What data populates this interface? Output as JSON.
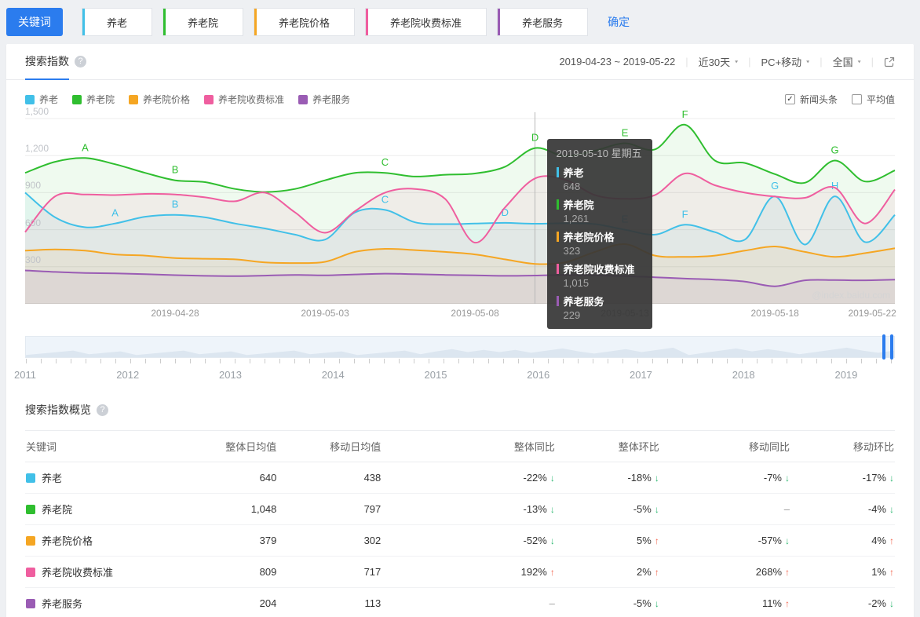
{
  "icons": {
    "caret": "▾",
    "help": "?",
    "check": "✓",
    "arrow_up": "↑",
    "arrow_down": "↓"
  },
  "topbar": {
    "keyword_button": "关键词",
    "confirm_label": "确定",
    "keywords": [
      {
        "label": "养老",
        "color": "#41c0e8"
      },
      {
        "label": "养老院",
        "color": "#2fbe2f"
      },
      {
        "label": "养老院价格",
        "color": "#f5a623"
      },
      {
        "label": "养老院收费标准",
        "color": "#ef5e9f"
      },
      {
        "label": "养老服务",
        "color": "#9a5cb4"
      }
    ]
  },
  "panel": {
    "tab_label": "搜索指数",
    "date_range": "2019-04-23 ~ 2019-05-22",
    "range_dropdown": "近30天",
    "device_dropdown": "PC+移动",
    "region_dropdown": "全国",
    "checkboxes": [
      {
        "label": "新闻头条",
        "checked": true
      },
      {
        "label": "平均值",
        "checked": false
      }
    ],
    "watermark": "@index.baidu.com"
  },
  "chart_data": {
    "type": "line",
    "title": "搜索指数",
    "x": [
      "2019-04-23",
      "2019-04-24",
      "2019-04-25",
      "2019-04-26",
      "2019-04-27",
      "2019-04-28",
      "2019-04-29",
      "2019-04-30",
      "2019-05-01",
      "2019-05-02",
      "2019-05-03",
      "2019-05-04",
      "2019-05-05",
      "2019-05-06",
      "2019-05-07",
      "2019-05-08",
      "2019-05-09",
      "2019-05-10",
      "2019-05-11",
      "2019-05-12",
      "2019-05-13",
      "2019-05-14",
      "2019-05-15",
      "2019-05-16",
      "2019-05-17",
      "2019-05-18",
      "2019-05-19",
      "2019-05-20",
      "2019-05-21",
      "2019-05-22"
    ],
    "ylim": [
      0,
      1500
    ],
    "yticks": [
      "300",
      "600",
      "900",
      "1,200",
      "1,500"
    ],
    "grid": true,
    "xtick_labels": [
      {
        "index": 5,
        "label": "2019-04-28"
      },
      {
        "index": 10,
        "label": "2019-05-03"
      },
      {
        "index": 15,
        "label": "2019-05-08"
      },
      {
        "index": 20,
        "label": "2019-05-13"
      },
      {
        "index": 25,
        "label": "2019-05-18"
      },
      {
        "index": 29,
        "label": "2019-05-22"
      }
    ],
    "series": [
      {
        "name": "养老",
        "color": "#41c0e8",
        "values": [
          900,
          700,
          620,
          650,
          705,
          720,
          700,
          650,
          610,
          560,
          520,
          740,
          760,
          660,
          645,
          650,
          655,
          648,
          652,
          645,
          600,
          560,
          640,
          580,
          520,
          870,
          480,
          870,
          500,
          720
        ],
        "markers": [
          {
            "letter": "A",
            "index": 3
          },
          {
            "letter": "B",
            "index": 5
          },
          {
            "letter": "C",
            "index": 12
          },
          {
            "letter": "D",
            "index": 16
          },
          {
            "letter": "E",
            "index": 20
          },
          {
            "letter": "F",
            "index": 22
          },
          {
            "letter": "G",
            "index": 25
          },
          {
            "letter": "H",
            "index": 27
          }
        ]
      },
      {
        "name": "养老院",
        "color": "#2fbe2f",
        "values": [
          1060,
          1150,
          1180,
          1130,
          1060,
          1000,
          985,
          930,
          905,
          930,
          1000,
          1060,
          1060,
          1030,
          1045,
          1055,
          1110,
          1261,
          1195,
          1240,
          1300,
          1250,
          1450,
          1160,
          1140,
          1050,
          980,
          1160,
          990,
          1080
        ],
        "markers": [
          {
            "letter": "A",
            "index": 2
          },
          {
            "letter": "B",
            "index": 5
          },
          {
            "letter": "C",
            "index": 12
          },
          {
            "letter": "D",
            "index": 17
          },
          {
            "letter": "E",
            "index": 20
          },
          {
            "letter": "F",
            "index": 22
          },
          {
            "letter": "G",
            "index": 27
          }
        ]
      },
      {
        "name": "养老院价格",
        "color": "#f5a623",
        "values": [
          430,
          440,
          430,
          400,
          390,
          370,
          365,
          360,
          335,
          330,
          340,
          420,
          445,
          435,
          420,
          400,
          360,
          323,
          335,
          420,
          483,
          390,
          380,
          390,
          430,
          464,
          420,
          380,
          410,
          450
        ],
        "markers": []
      },
      {
        "name": "养老院收费标准",
        "color": "#ef5e9f",
        "values": [
          580,
          870,
          885,
          880,
          890,
          885,
          862,
          830,
          900,
          740,
          575,
          750,
          900,
          930,
          850,
          495,
          780,
          1015,
          1005,
          880,
          850,
          880,
          1055,
          960,
          900,
          868,
          858,
          940,
          650,
          925
        ],
        "markers": []
      },
      {
        "name": "养老服务",
        "color": "#9a5cb4",
        "values": [
          270,
          258,
          250,
          246,
          240,
          232,
          226,
          224,
          228,
          234,
          230,
          238,
          244,
          240,
          234,
          230,
          226,
          229,
          234,
          230,
          224,
          215,
          204,
          196,
          180,
          142,
          190,
          192,
          190,
          195
        ],
        "markers": []
      }
    ],
    "tooltip": {
      "index": 17,
      "title": "2019-05-10 星期五",
      "values": [
        "648",
        "1,261",
        "323",
        "1,015",
        "229"
      ]
    }
  },
  "timeline": {
    "years": [
      "2011",
      "2012",
      "2013",
      "2014",
      "2015",
      "2016",
      "2017",
      "2018",
      "2019"
    ]
  },
  "overview": {
    "title": "搜索指数概览",
    "columns": [
      "关键词",
      "整体日均值",
      "移动日均值",
      "整体同比",
      "整体环比",
      "移动同比",
      "移动环比"
    ],
    "col_widths": [
      "18%",
      "11%",
      "12%",
      "20%",
      "12%",
      "15%",
      "12%"
    ],
    "arrow_up_color": "#f2654e",
    "arrow_down_color": "#2eb872",
    "rows": [
      {
        "keyword": "养老",
        "color": "#41c0e8",
        "overall_avg": "640",
        "mobile_avg": "438",
        "cells": [
          {
            "text": "-22%",
            "dir": "down"
          },
          {
            "text": "-18%",
            "dir": "down"
          },
          {
            "text": "-7%",
            "dir": "down"
          },
          {
            "text": "-17%",
            "dir": "down"
          }
        ]
      },
      {
        "keyword": "养老院",
        "color": "#2fbe2f",
        "overall_avg": "1,048",
        "mobile_avg": "797",
        "cells": [
          {
            "text": "-13%",
            "dir": "down"
          },
          {
            "text": "-5%",
            "dir": "down"
          },
          {
            "text": "–",
            "dir": "none"
          },
          {
            "text": "-4%",
            "dir": "down"
          }
        ]
      },
      {
        "keyword": "养老院价格",
        "color": "#f5a623",
        "overall_avg": "379",
        "mobile_avg": "302",
        "cells": [
          {
            "text": "-52%",
            "dir": "down"
          },
          {
            "text": "5%",
            "dir": "up"
          },
          {
            "text": "-57%",
            "dir": "down"
          },
          {
            "text": "4%",
            "dir": "up"
          }
        ]
      },
      {
        "keyword": "养老院收费标准",
        "color": "#ef5e9f",
        "overall_avg": "809",
        "mobile_avg": "717",
        "cells": [
          {
            "text": "192%",
            "dir": "up"
          },
          {
            "text": "2%",
            "dir": "up"
          },
          {
            "text": "268%",
            "dir": "up"
          },
          {
            "text": "1%",
            "dir": "up"
          }
        ]
      },
      {
        "keyword": "养老服务",
        "color": "#9a5cb4",
        "overall_avg": "204",
        "mobile_avg": "113",
        "cells": [
          {
            "text": "–",
            "dir": "none"
          },
          {
            "text": "-5%",
            "dir": "down"
          },
          {
            "text": "11%",
            "dir": "up"
          },
          {
            "text": "-2%",
            "dir": "down"
          }
        ]
      }
    ]
  }
}
